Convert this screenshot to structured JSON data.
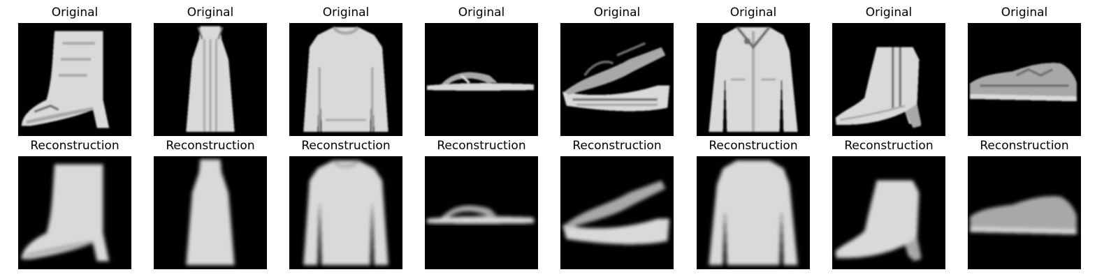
{
  "figure": {
    "rows": [
      {
        "panels": [
          {
            "title": "Original",
            "item": "ankle-boot",
            "variant": "original"
          },
          {
            "title": "Original",
            "item": "dress",
            "variant": "original"
          },
          {
            "title": "Original",
            "item": "pullover",
            "variant": "original"
          },
          {
            "title": "Original",
            "item": "sandal-flat",
            "variant": "original"
          },
          {
            "title": "Original",
            "item": "sandal-wedge",
            "variant": "original"
          },
          {
            "title": "Original",
            "item": "coat",
            "variant": "original"
          },
          {
            "title": "Original",
            "item": "ankle-boot-heel",
            "variant": "original"
          },
          {
            "title": "Original",
            "item": "sneaker",
            "variant": "original"
          }
        ]
      },
      {
        "panels": [
          {
            "title": "Reconstruction",
            "item": "ankle-boot",
            "variant": "reconstruction"
          },
          {
            "title": "Reconstruction",
            "item": "dress",
            "variant": "reconstruction"
          },
          {
            "title": "Reconstruction",
            "item": "pullover",
            "variant": "reconstruction"
          },
          {
            "title": "Reconstruction",
            "item": "sandal-flat",
            "variant": "reconstruction"
          },
          {
            "title": "Reconstruction",
            "item": "sandal-wedge",
            "variant": "reconstruction"
          },
          {
            "title": "Reconstruction",
            "item": "coat",
            "variant": "reconstruction"
          },
          {
            "title": "Reconstruction",
            "item": "ankle-boot-heel",
            "variant": "reconstruction"
          },
          {
            "title": "Reconstruction",
            "item": "sneaker",
            "variant": "reconstruction"
          }
        ]
      }
    ]
  },
  "colors": {
    "background": "#000000",
    "garment_light": "#d9d9d9",
    "garment_mid": "#a8a8a8",
    "garment_dark": "#6e6e6e",
    "title_text": "#000000"
  }
}
